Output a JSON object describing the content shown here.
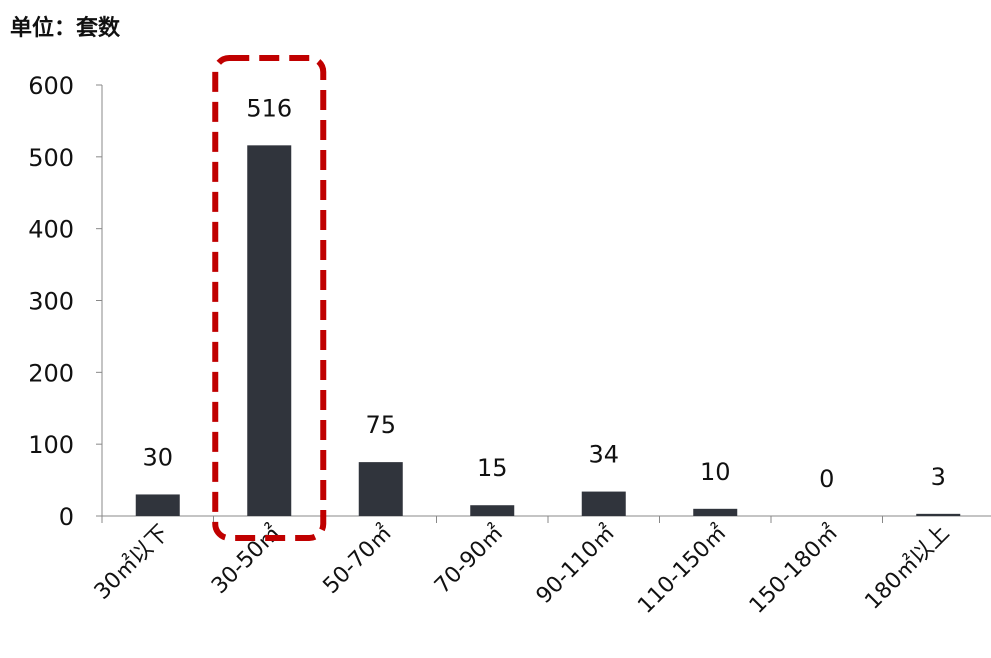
{
  "unit_label": "单位：套数",
  "chart_data": {
    "type": "bar",
    "categories": [
      "30㎡以下",
      "30-50㎡",
      "50-70㎡",
      "70-90㎡",
      "90-110㎡",
      "110-150㎡",
      "150-180㎡",
      "180㎡以上"
    ],
    "values": [
      30,
      516,
      75,
      15,
      34,
      10,
      0,
      3
    ],
    "yticks": [
      0,
      100,
      200,
      300,
      400,
      500,
      600
    ],
    "ylim": [
      0,
      600
    ],
    "bar_color": "#30343c",
    "highlight": {
      "category": "30-50㎡",
      "color": "#c00000",
      "style": "dashed"
    },
    "grid": false,
    "legend": "none"
  }
}
